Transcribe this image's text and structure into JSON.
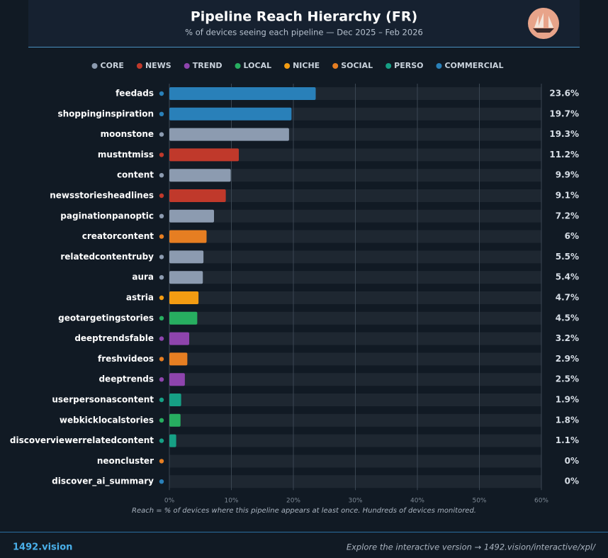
{
  "chart_data": {
    "type": "hbar",
    "title": "Pipeline Reach Hierarchy (FR)",
    "subtitle": "% of devices seeing each pipeline — Dec 2025 – Feb 2026",
    "legend": [
      {
        "name": "CORE",
        "color": "#8c9bb0"
      },
      {
        "name": "NEWS",
        "color": "#c0392b"
      },
      {
        "name": "TREND",
        "color": "#8e44ad"
      },
      {
        "name": "LOCAL",
        "color": "#27ae60"
      },
      {
        "name": "NICHE",
        "color": "#f39c12"
      },
      {
        "name": "SOCIAL",
        "color": "#e67e22"
      },
      {
        "name": "PERSO",
        "color": "#16a085"
      },
      {
        "name": "COMMERCIAL",
        "color": "#2980b9"
      }
    ],
    "categories": [
      "feedads",
      "shoppinginspiration",
      "moonstone",
      "mustntmiss",
      "content",
      "newsstoriesheadlines",
      "paginationpanoptic",
      "creatorcontent",
      "relatedcontentruby",
      "aura",
      "astria",
      "geotargetingstories",
      "deeptrendsfable",
      "freshvideos",
      "deeptrends",
      "userpersonascontent",
      "webkicklocalstories",
      "discoverviewerrelatedcontent",
      "neoncluster",
      "discover_ai_summary"
    ],
    "values": [
      23.6,
      19.7,
      19.3,
      11.2,
      9.9,
      9.1,
      7.2,
      6,
      5.5,
      5.4,
      4.7,
      4.5,
      3.2,
      2.9,
      2.5,
      1.9,
      1.8,
      1.1,
      0,
      0
    ],
    "value_labels": [
      "23.6%",
      "19.7%",
      "19.3%",
      "11.2%",
      "9.9%",
      "9.1%",
      "7.2%",
      "6%",
      "5.5%",
      "5.4%",
      "4.7%",
      "4.5%",
      "3.2%",
      "2.9%",
      "2.5%",
      "1.9%",
      "1.8%",
      "1.1%",
      "0%",
      "0%"
    ],
    "colors": [
      "#2980b9",
      "#2980b9",
      "#8c9bb0",
      "#c0392b",
      "#8c9bb0",
      "#c0392b",
      "#8c9bb0",
      "#e67e22",
      "#8c9bb0",
      "#8c9bb0",
      "#f39c12",
      "#27ae60",
      "#8e44ad",
      "#e67e22",
      "#8e44ad",
      "#16a085",
      "#27ae60",
      "#16a085",
      "#e67e22",
      "#2980b9"
    ],
    "xlim": [
      0,
      60
    ],
    "xticks": [
      {
        "value": 0,
        "label": "0%"
      },
      {
        "value": 10,
        "label": "10%"
      },
      {
        "value": 20,
        "label": "20%"
      },
      {
        "value": 30,
        "label": "30%"
      },
      {
        "value": 40,
        "label": "40%"
      },
      {
        "value": 50,
        "label": "50%"
      },
      {
        "value": 60,
        "label": "60%"
      }
    ],
    "grid": true,
    "note": "Reach = % of devices where this pipeline appears at least once. Hundreds of devices monitored.",
    "footer_left": "1492.vision",
    "footer_right": "Explore the interactive version → 1492.vision/interactive/xpl/"
  }
}
